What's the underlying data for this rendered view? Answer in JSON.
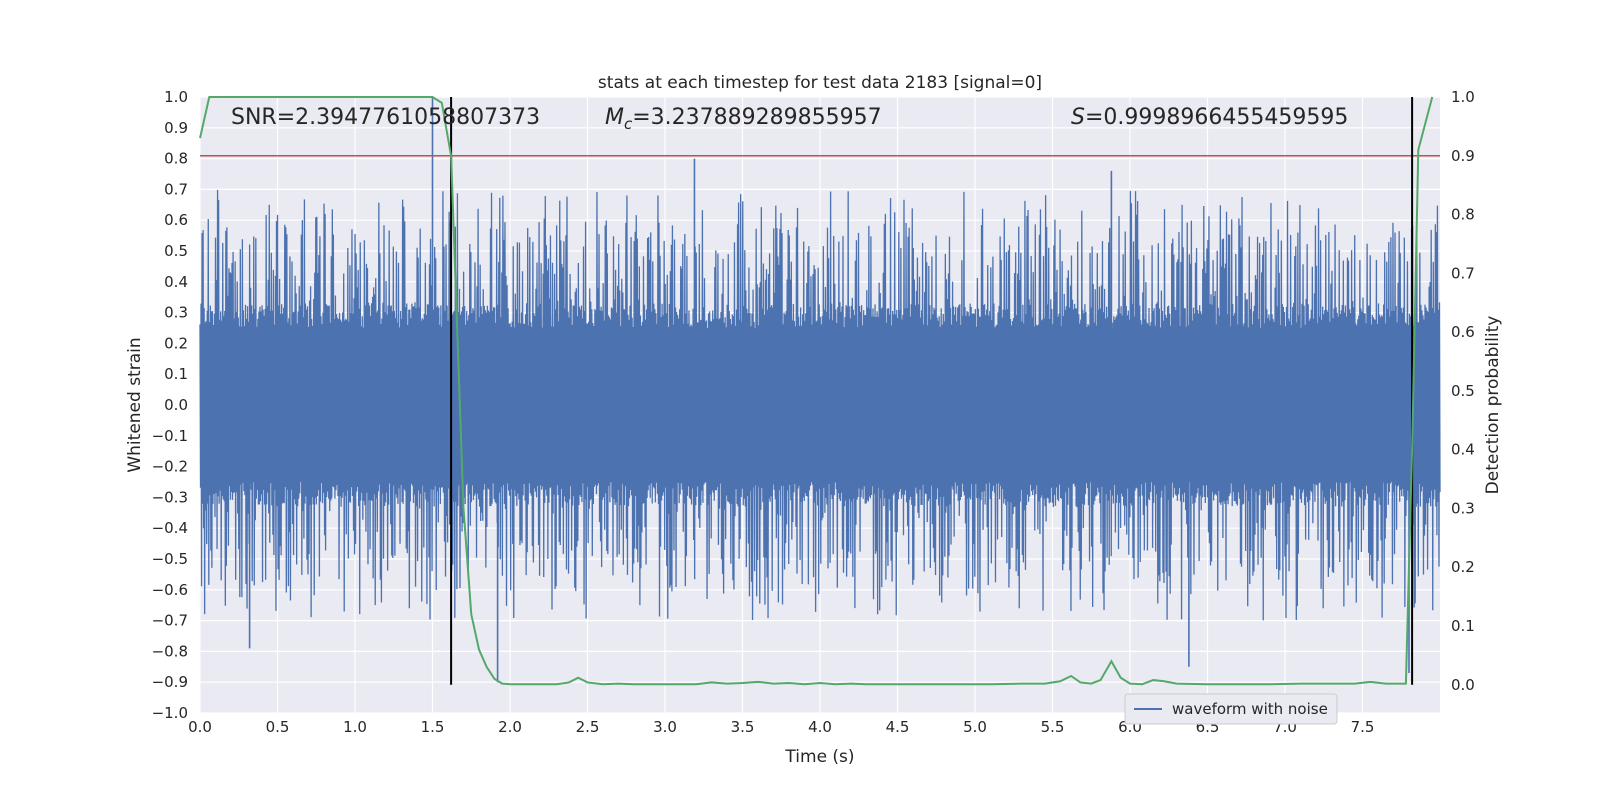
{
  "chart_data": {
    "type": "line",
    "title": "stats at each timestep for test data 2183 [signal=0]",
    "xlabel": "Time (s)",
    "ylabel": "Whitened strain",
    "y2label": "Detection probability",
    "xlim": [
      0.0,
      8.0
    ],
    "ylim": [
      -1.0,
      1.0
    ],
    "y2lim": [
      -0.048,
      1.0
    ],
    "x_ticks": [
      0.0,
      0.5,
      1.0,
      1.5,
      2.0,
      2.5,
      3.0,
      3.5,
      4.0,
      4.5,
      5.0,
      5.5,
      6.0,
      6.5,
      7.0,
      7.5
    ],
    "x_tick_labels": [
      "0.0",
      "0.5",
      "1.0",
      "1.5",
      "2.0",
      "2.5",
      "3.0",
      "3.5",
      "4.0",
      "4.5",
      "5.0",
      "5.5",
      "6.0",
      "6.5",
      "7.0",
      "7.5"
    ],
    "y_ticks": [
      1.0,
      0.9,
      0.8,
      0.7,
      0.6,
      0.5,
      0.4,
      0.3,
      0.2,
      0.1,
      0.0,
      -0.1,
      -0.2,
      -0.3,
      -0.4,
      -0.5,
      -0.6,
      -0.7,
      -0.8,
      -0.9,
      -1.0
    ],
    "y_tick_labels": [
      "1.0",
      "0.9",
      "0.8",
      "0.7",
      "0.6",
      "0.5",
      "0.4",
      "0.3",
      "0.2",
      "0.1",
      "0.0",
      "−0.1",
      "−0.2",
      "−0.3",
      "−0.4",
      "−0.5",
      "−0.6",
      "−0.7",
      "−0.8",
      "−0.9",
      "−1.0"
    ],
    "y2_ticks": [
      1.0,
      0.9,
      0.8,
      0.7,
      0.6,
      0.5,
      0.4,
      0.3,
      0.2,
      0.1,
      0.0
    ],
    "y2_tick_labels": [
      "1.0",
      "0.9",
      "0.8",
      "0.7",
      "0.6",
      "0.5",
      "0.4",
      "0.3",
      "0.2",
      "0.1",
      "0.0"
    ],
    "annotations": {
      "snr": "SNR=2.3947761058807373",
      "mc_symbol": "M",
      "mc_subscript": "c",
      "mc_value": "=3.237889289855957",
      "s_symbol": "S",
      "s_value": "=0.9998966455459595"
    },
    "legend": {
      "label": "waveform with noise",
      "position": "lower-right"
    },
    "series": [
      {
        "name": "waveform with noise",
        "axis": "left",
        "color": "#4c72b0",
        "kind": "noise",
        "envelope": 0.25,
        "typical_peak": 0.6,
        "min": -0.9,
        "max": 1.0,
        "spikes": [
          {
            "x": 1.5,
            "y": 1.0
          },
          {
            "x": 1.62,
            "y": 0.8
          },
          {
            "x": 3.19,
            "y": 0.8
          },
          {
            "x": 1.92,
            "y": -0.9
          },
          {
            "x": 7.8,
            "y": -0.87
          },
          {
            "x": 6.38,
            "y": -0.85
          },
          {
            "x": 0.32,
            "y": -0.79
          },
          {
            "x": 5.88,
            "y": 0.76
          }
        ]
      },
      {
        "name": "detection probability",
        "axis": "right",
        "color": "#55a868",
        "x": [
          0.0,
          0.06,
          0.12,
          0.2,
          0.3,
          0.4,
          0.5,
          0.6,
          0.8,
          1.0,
          1.2,
          1.4,
          1.5,
          1.56,
          1.62,
          1.7,
          1.75,
          1.8,
          1.85,
          1.9,
          1.95,
          2.0,
          2.1,
          2.2,
          2.3,
          2.38,
          2.44,
          2.5,
          2.6,
          2.7,
          2.8,
          2.9,
          3.0,
          3.1,
          3.2,
          3.3,
          3.4,
          3.5,
          3.6,
          3.7,
          3.8,
          3.9,
          4.0,
          4.1,
          4.2,
          4.3,
          4.5,
          4.7,
          4.9,
          5.1,
          5.3,
          5.45,
          5.55,
          5.62,
          5.68,
          5.75,
          5.81,
          5.88,
          5.94,
          6.0,
          6.08,
          6.15,
          6.22,
          6.3,
          6.5,
          6.7,
          6.9,
          7.1,
          7.3,
          7.45,
          7.55,
          7.65,
          7.78,
          7.82,
          7.86,
          7.9,
          7.95
        ],
        "values": [
          0.93,
          1.0,
          1.0,
          1.0,
          1.0,
          1.0,
          1.0,
          1.0,
          1.0,
          1.0,
          1.0,
          1.0,
          1.0,
          0.99,
          0.9,
          0.3,
          0.12,
          0.06,
          0.03,
          0.01,
          0.002,
          0.001,
          0.001,
          0.001,
          0.001,
          0.004,
          0.012,
          0.004,
          0.001,
          0.002,
          0.001,
          0.001,
          0.001,
          0.001,
          0.001,
          0.004,
          0.002,
          0.003,
          0.005,
          0.002,
          0.003,
          0.001,
          0.003,
          0.001,
          0.002,
          0.001,
          0.001,
          0.001,
          0.001,
          0.001,
          0.002,
          0.002,
          0.006,
          0.015,
          0.004,
          0.002,
          0.008,
          0.04,
          0.012,
          0.002,
          0.001,
          0.008,
          0.006,
          0.002,
          0.001,
          0.001,
          0.001,
          0.002,
          0.002,
          0.002,
          0.005,
          0.002,
          0.002,
          0.4,
          0.91,
          0.95,
          1.0
        ]
      },
      {
        "name": "threshold",
        "axis": "right",
        "color": "#c44e52",
        "kind": "hline",
        "y": 0.9
      },
      {
        "name": "event boundaries",
        "axis": "right",
        "color": "#000000",
        "kind": "vlines",
        "x": [
          1.62,
          7.82
        ],
        "range": [
          0.0,
          1.0
        ]
      }
    ]
  }
}
